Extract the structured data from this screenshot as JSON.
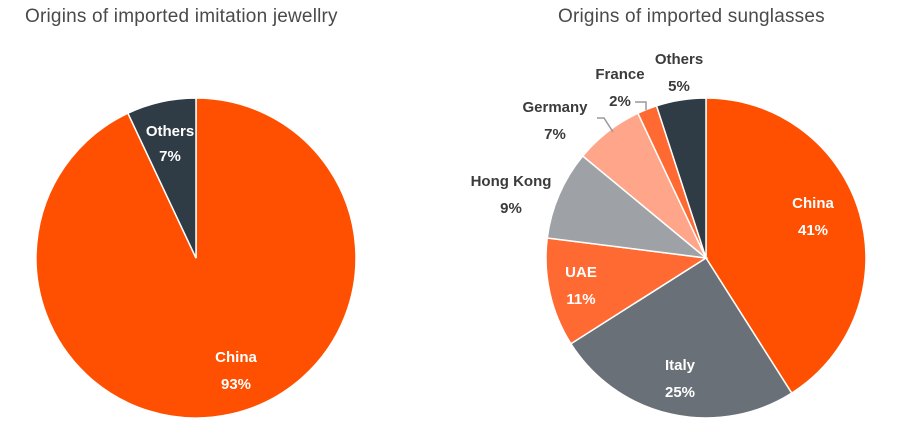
{
  "chart_data": [
    {
      "type": "pie",
      "title": "Origins of imported imitation jewellry",
      "slices": [
        {
          "label": "China",
          "value": 93,
          "display": "93%",
          "color": "#FF4F00"
        },
        {
          "label": "Others",
          "value": 7,
          "display": "7%",
          "color": "#2F3B45"
        }
      ]
    },
    {
      "type": "pie",
      "title": "Origins of imported sunglasses",
      "slices": [
        {
          "label": "China",
          "value": 41,
          "display": "41%",
          "color": "#FF4F00"
        },
        {
          "label": "Italy",
          "value": 25,
          "display": "25%",
          "color": "#6A7078"
        },
        {
          "label": "UAE",
          "value": 11,
          "display": "11%",
          "color": "#FF6A33"
        },
        {
          "label": "Hong Kong",
          "value": 9,
          "display": "9%",
          "color": "#9EA1A6"
        },
        {
          "label": "Germany",
          "value": 7,
          "display": "7%",
          "color": "#FFA58A"
        },
        {
          "label": "France",
          "value": 2,
          "display": "2%",
          "color": "#FF6A33"
        },
        {
          "label": "Others",
          "value": 5,
          "display": "5%",
          "color": "#2F3B45"
        }
      ]
    }
  ]
}
